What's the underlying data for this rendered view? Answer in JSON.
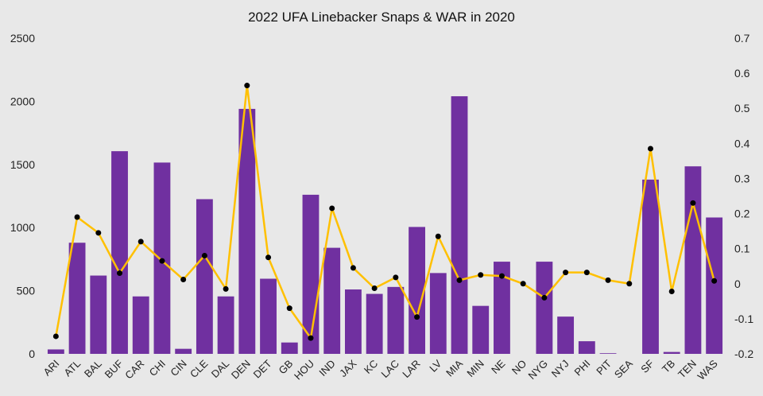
{
  "chart_data": {
    "type": "bar",
    "title": "2022 UFA Linebacker Snaps & WAR in 2020",
    "categories": [
      "ARI",
      "ATL",
      "BAL",
      "BUF",
      "CAR",
      "CHI",
      "CIN",
      "CLE",
      "DAL",
      "DEN",
      "DET",
      "GB",
      "HOU",
      "IND",
      "JAX",
      "KC",
      "LAC",
      "LAR",
      "LV",
      "MIA",
      "MIN",
      "NE",
      "NO",
      "NYG",
      "NYJ",
      "PHI",
      "PIT",
      "SEA",
      "SF",
      "TB",
      "TEN",
      "WAS"
    ],
    "series": [
      {
        "type": "bar",
        "axis": "left",
        "color": "#7030a0",
        "values": [
          35,
          880,
          620,
          1605,
          455,
          1515,
          40,
          1225,
          455,
          1940,
          595,
          90,
          1260,
          840,
          510,
          475,
          530,
          1005,
          640,
          2040,
          380,
          730,
          0,
          730,
          295,
          100,
          5,
          0,
          1380,
          15,
          1485,
          1080
        ]
      },
      {
        "type": "line",
        "axis": "right",
        "color": "#ffc000",
        "values": [
          -0.15,
          0.19,
          0.145,
          0.03,
          0.12,
          0.065,
          0.012,
          0.08,
          -0.015,
          0.565,
          0.075,
          -0.07,
          -0.155,
          0.215,
          0.045,
          -0.013,
          0.018,
          -0.095,
          0.135,
          0.01,
          0.025,
          0.022,
          0.0,
          -0.04,
          0.032,
          0.032,
          0.01,
          0.0,
          0.385,
          -0.022,
          0.23,
          0.008
        ]
      }
    ],
    "y_left": {
      "min": 0,
      "max": 2500,
      "ticks": [
        "0",
        "500",
        "1000",
        "1500",
        "2000",
        "2500"
      ]
    },
    "y_right": {
      "min": -0.2,
      "max": 0.7,
      "ticks": [
        "-0.2",
        "-0.1",
        "0",
        "0.1",
        "0.2",
        "0.3",
        "0.4",
        "0.5",
        "0.6",
        "0.7"
      ]
    },
    "grid": false,
    "legend": "none"
  }
}
